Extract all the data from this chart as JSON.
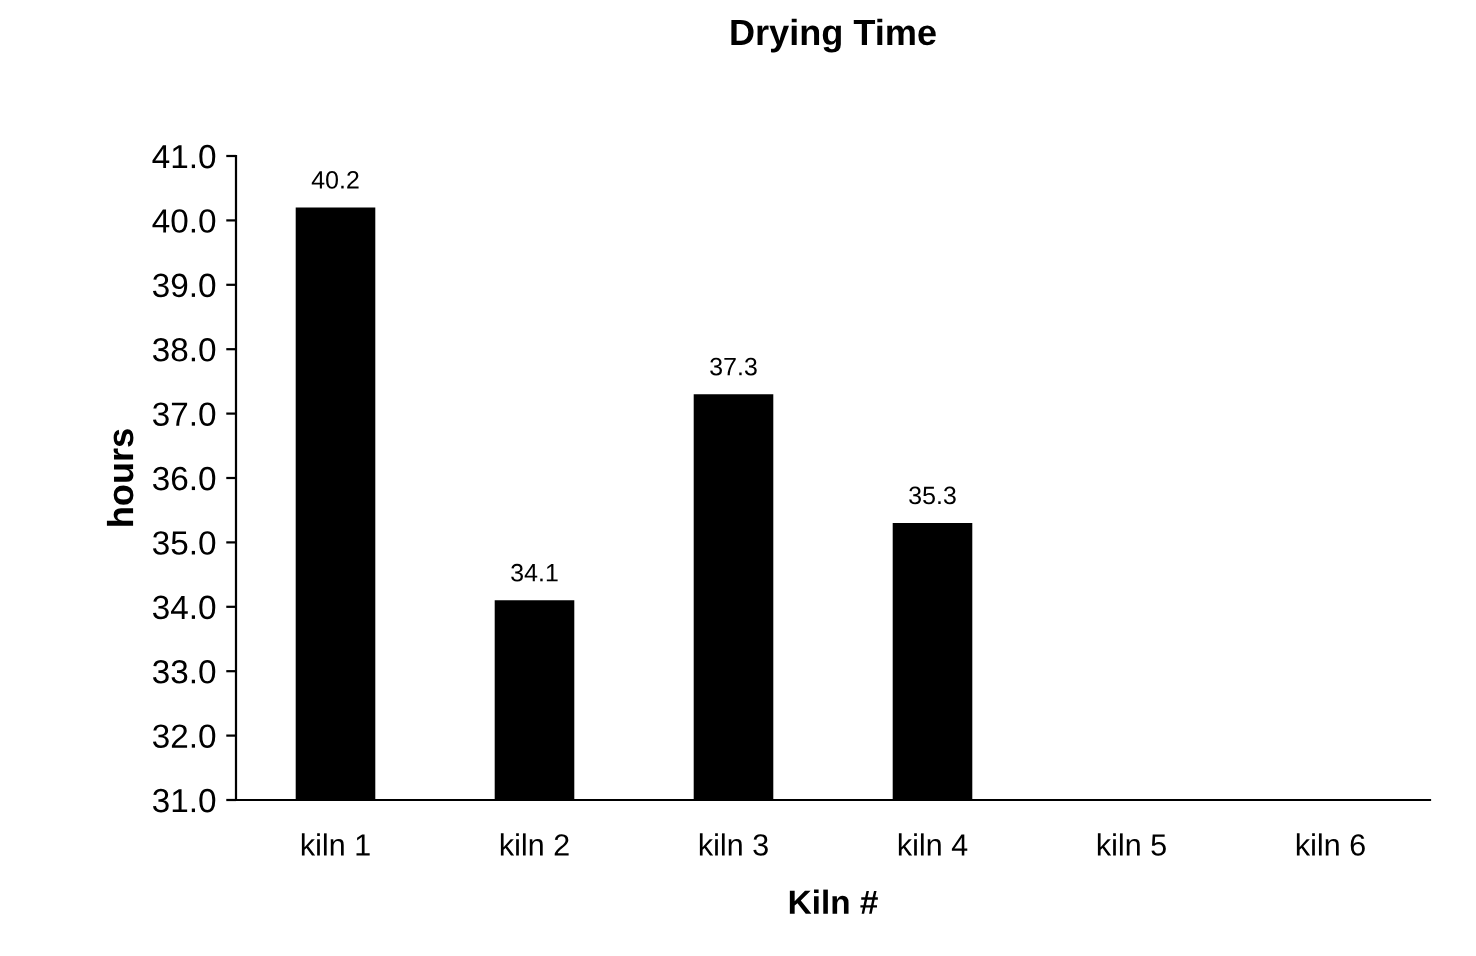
{
  "chart_data": {
    "type": "bar",
    "title": "Drying Time",
    "xlabel": "Kiln #",
    "ylabel": "hours",
    "categories": [
      "kiln 1",
      "kiln 2",
      "kiln 3",
      "kiln 4",
      "kiln 5",
      "kiln 6"
    ],
    "values": [
      40.2,
      34.1,
      37.3,
      35.3,
      null,
      null
    ],
    "color": "#000000",
    "ylim": [
      31,
      41
    ],
    "yticks": [
      {
        "value": 31,
        "label": "31.0"
      },
      {
        "value": 32,
        "label": "32.0"
      },
      {
        "value": 33,
        "label": "33.0"
      },
      {
        "value": 34,
        "label": "34.0"
      },
      {
        "value": 35,
        "label": "35.0"
      },
      {
        "value": 36,
        "label": "36.0"
      },
      {
        "value": 37,
        "label": "37.0"
      },
      {
        "value": 38,
        "label": "38.0"
      },
      {
        "value": 39,
        "label": "39.0"
      },
      {
        "value": 40,
        "label": "40.0"
      },
      {
        "value": 41,
        "label": "41.0"
      }
    ],
    "data_labels": true
  }
}
